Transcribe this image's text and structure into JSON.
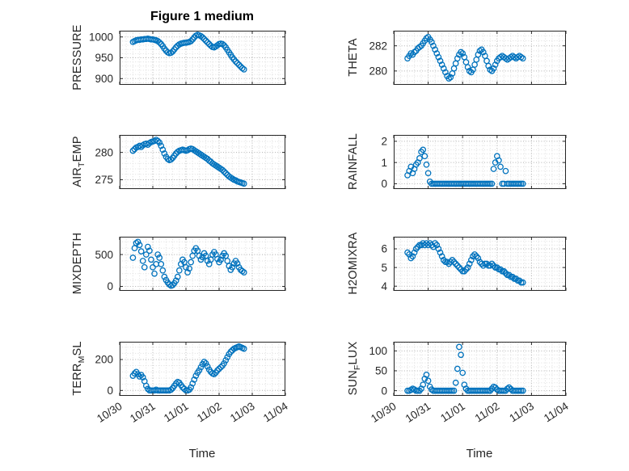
{
  "figure": {
    "title": "Figure 1 medium",
    "xlabel": "Time"
  },
  "chart_data": {
    "type": "scatter",
    "marker": {
      "shape": "circle-open",
      "color": "#0072BD",
      "radius": 3.2,
      "stroke_width": 1.3
    },
    "axis_color": "#262626",
    "grid": {
      "style": "dotted",
      "major_color": "#b0b0b0",
      "minor_color": "#dedede"
    },
    "xlabel": "Time",
    "xlim": [
      0,
      5
    ],
    "x_tick_values": [
      0,
      1,
      2,
      3,
      4,
      5
    ],
    "x_tick_labels": [
      "10/30",
      "10/31",
      "11/01",
      "11/02",
      "11/03",
      "11/04"
    ],
    "x": [
      0.4,
      0.45,
      0.5,
      0.55,
      0.6,
      0.65,
      0.7,
      0.75,
      0.8,
      0.85,
      0.9,
      0.95,
      1,
      1.05,
      1.1,
      1.15,
      1.2,
      1.25,
      1.3,
      1.35,
      1.4,
      1.45,
      1.5,
      1.55,
      1.6,
      1.65,
      1.7,
      1.75,
      1.8,
      1.85,
      1.9,
      1.95,
      2,
      2.05,
      2.1,
      2.15,
      2.2,
      2.25,
      2.3,
      2.35,
      2.4,
      2.45,
      2.5,
      2.55,
      2.6,
      2.65,
      2.7,
      2.75,
      2.8,
      2.85,
      2.9,
      2.95,
      3,
      3.05,
      3.1,
      3.15,
      3.2,
      3.25,
      3.3,
      3.35,
      3.4,
      3.45,
      3.5,
      3.55,
      3.6,
      3.65,
      3.7,
      3.75
    ],
    "charts": [
      {
        "name": "PRESSURE",
        "ylabel_parts": [
          [
            "PRESSURE",
            0
          ]
        ],
        "yticks": [
          900,
          950,
          1000
        ],
        "ylim": [
          885,
          1015
        ],
        "y": [
          988,
          990,
          992,
          993,
          993,
          994,
          994,
          995,
          995,
          996,
          995,
          994,
          994,
          993,
          992,
          990,
          987,
          983,
          978,
          972,
          967,
          963,
          961,
          962,
          965,
          970,
          975,
          979,
          982,
          984,
          985,
          986,
          986,
          987,
          988,
          990,
          994,
          999,
          1003,
          1005,
          1004,
          1002,
          999,
          995,
          991,
          987,
          983,
          979,
          976,
          975,
          977,
          980,
          983,
          984,
          983,
          980,
          975,
          969,
          963,
          957,
          951,
          946,
          941,
          937,
          933,
          929,
          925,
          922
        ]
      },
      {
        "name": "AIR_TEMP",
        "ylabel_parts": [
          [
            "AIR",
            0
          ],
          [
            "T",
            1
          ],
          [
            "EMP",
            0
          ]
        ],
        "yticks": [
          275,
          280
        ],
        "ylim": [
          273.3,
          283.2
        ],
        "y": [
          280.3,
          280.6,
          280.9,
          281,
          281.2,
          281,
          281.3,
          281.5,
          281.6,
          281.4,
          281.7,
          281.9,
          282,
          282.1,
          282.3,
          282.1,
          281.8,
          281.2,
          280.5,
          279.8,
          279.2,
          278.8,
          278.6,
          278.7,
          279,
          279.4,
          279.8,
          280.1,
          280.3,
          280.4,
          280.5,
          280.4,
          280.3,
          280.4,
          280.6,
          280.7,
          280.6,
          280.4,
          280.2,
          280,
          279.8,
          279.6,
          279.4,
          279.2,
          279,
          278.8,
          278.5,
          278.3,
          278,
          277.8,
          277.6,
          277.4,
          277.2,
          277,
          276.8,
          276.5,
          276.2,
          275.9,
          275.6,
          275.4,
          275.2,
          275,
          274.9,
          274.7,
          274.6,
          274.5,
          274.4,
          274.3
        ]
      },
      {
        "name": "MIXDEPTH",
        "ylabel_parts": [
          [
            "MIXDEPTH",
            0
          ]
        ],
        "yticks": [
          0,
          500
        ],
        "ylim": [
          -70,
          780
        ],
        "y": [
          450,
          600,
          680,
          700,
          650,
          550,
          400,
          300,
          500,
          620,
          560,
          420,
          300,
          200,
          350,
          500,
          450,
          350,
          250,
          150,
          100,
          60,
          30,
          10,
          20,
          50,
          90,
          150,
          250,
          350,
          420,
          380,
          300,
          220,
          280,
          380,
          480,
          560,
          600,
          560,
          480,
          420,
          460,
          520,
          480,
          400,
          350,
          420,
          500,
          540,
          500,
          430,
          380,
          420,
          480,
          520,
          480,
          400,
          320,
          260,
          300,
          360,
          400,
          360,
          300,
          260,
          240,
          220
        ]
      },
      {
        "name": "TERR_MSL",
        "ylabel_parts": [
          [
            "TERR",
            0
          ],
          [
            "M",
            1
          ],
          [
            "SL",
            0
          ]
        ],
        "yticks": [
          0,
          200
        ],
        "ylim": [
          -35,
          315
        ],
        "y": [
          95,
          110,
          120,
          105,
          90,
          100,
          85,
          60,
          30,
          10,
          0,
          0,
          0,
          0,
          5,
          0,
          0,
          0,
          0,
          0,
          0,
          0,
          0,
          5,
          15,
          30,
          45,
          55,
          50,
          35,
          20,
          10,
          0,
          0,
          5,
          20,
          45,
          70,
          95,
          115,
          130,
          150,
          170,
          185,
          175,
          155,
          135,
          120,
          110,
          105,
          115,
          130,
          140,
          150,
          160,
          175,
          195,
          215,
          235,
          250,
          260,
          270,
          275,
          280,
          285,
          280,
          275,
          270
        ]
      },
      {
        "name": "THETA",
        "ylabel_parts": [
          [
            "THETA",
            0
          ]
        ],
        "yticks": [
          280,
          282
        ],
        "ylim": [
          278.9,
          283.2
        ],
        "y": [
          281,
          281.2,
          281.4,
          281.3,
          281.5,
          281.6,
          281.8,
          281.9,
          282,
          282.2,
          282.4,
          282.6,
          282.7,
          282.5,
          282.3,
          282,
          281.7,
          281.4,
          281.1,
          280.8,
          280.5,
          280.2,
          279.9,
          279.6,
          279.4,
          279.5,
          279.8,
          280.2,
          280.6,
          281,
          281.3,
          281.5,
          281.4,
          281.1,
          280.7,
          280.3,
          280,
          279.9,
          280.1,
          280.5,
          280.9,
          281.3,
          281.6,
          281.7,
          281.5,
          281.2,
          280.8,
          280.4,
          280.1,
          280,
          280.2,
          280.5,
          280.8,
          281,
          281.1,
          281.2,
          281.1,
          281,
          280.9,
          281,
          281.1,
          281.2,
          281.1,
          281,
          281.1,
          281.2,
          281.1,
          281
        ]
      },
      {
        "name": "RAINFALL",
        "ylabel_parts": [
          [
            "RAINFALL",
            0
          ]
        ],
        "yticks": [
          0,
          1,
          2
        ],
        "ylim": [
          -0.25,
          2.3
        ],
        "y": [
          0.4,
          0.6,
          0.8,
          0.5,
          0.7,
          0.9,
          1,
          1.2,
          1.5,
          1.6,
          1.3,
          0.9,
          0.5,
          0.1,
          0,
          0,
          0,
          0,
          0,
          0,
          0,
          0,
          0,
          0,
          0,
          0,
          0,
          0,
          0,
          0,
          0,
          0,
          0,
          0,
          0,
          0,
          0,
          0,
          0,
          0,
          0,
          0,
          0,
          0,
          0,
          0,
          0,
          0,
          0,
          0,
          0.7,
          1,
          1.3,
          1.1,
          0.8,
          0,
          0,
          0.6,
          0,
          0,
          0,
          0,
          0,
          0,
          0,
          0,
          0,
          0
        ]
      },
      {
        "name": "H2OMIXRA",
        "ylabel_parts": [
          [
            "H2OMIXRA",
            0
          ]
        ],
        "yticks": [
          4,
          5,
          6
        ],
        "ylim": [
          3.75,
          6.65
        ],
        "y": [
          5.8,
          5.7,
          5.5,
          5.6,
          5.8,
          6,
          6.1,
          6.2,
          6.2,
          6.3,
          6.2,
          6.3,
          6.2,
          6.3,
          6.2,
          6.1,
          6.3,
          6.2,
          6,
          5.8,
          5.6,
          5.4,
          5.3,
          5.3,
          5.2,
          5.3,
          5.4,
          5.3,
          5.2,
          5.1,
          5,
          4.9,
          4.8,
          4.8,
          4.9,
          5,
          5.2,
          5.4,
          5.6,
          5.7,
          5.6,
          5.5,
          5.3,
          5.2,
          5.1,
          5.2,
          5.2,
          5.1,
          5.1,
          5.2,
          5.1,
          5,
          5,
          4.9,
          4.9,
          4.8,
          4.8,
          4.7,
          4.6,
          4.6,
          4.5,
          4.5,
          4.4,
          4.4,
          4.3,
          4.3,
          4.2,
          4.2
        ]
      },
      {
        "name": "SUN_FLUX",
        "ylabel_parts": [
          [
            "SUN",
            0
          ],
          [
            "F",
            1
          ],
          [
            "LUX",
            0
          ]
        ],
        "yticks": [
          0,
          50,
          100
        ],
        "ylim": [
          -13,
          123
        ],
        "y": [
          0,
          0,
          2,
          5,
          3,
          0,
          0,
          0,
          5,
          15,
          30,
          40,
          25,
          10,
          3,
          0,
          0,
          0,
          0,
          0,
          0,
          0,
          0,
          0,
          0,
          0,
          0,
          0,
          20,
          55,
          110,
          90,
          45,
          15,
          5,
          0,
          0,
          0,
          0,
          0,
          0,
          0,
          0,
          0,
          0,
          0,
          0,
          0,
          0,
          5,
          10,
          8,
          3,
          0,
          0,
          0,
          0,
          0,
          5,
          8,
          4,
          0,
          0,
          0,
          0,
          0,
          0,
          0
        ]
      }
    ]
  }
}
